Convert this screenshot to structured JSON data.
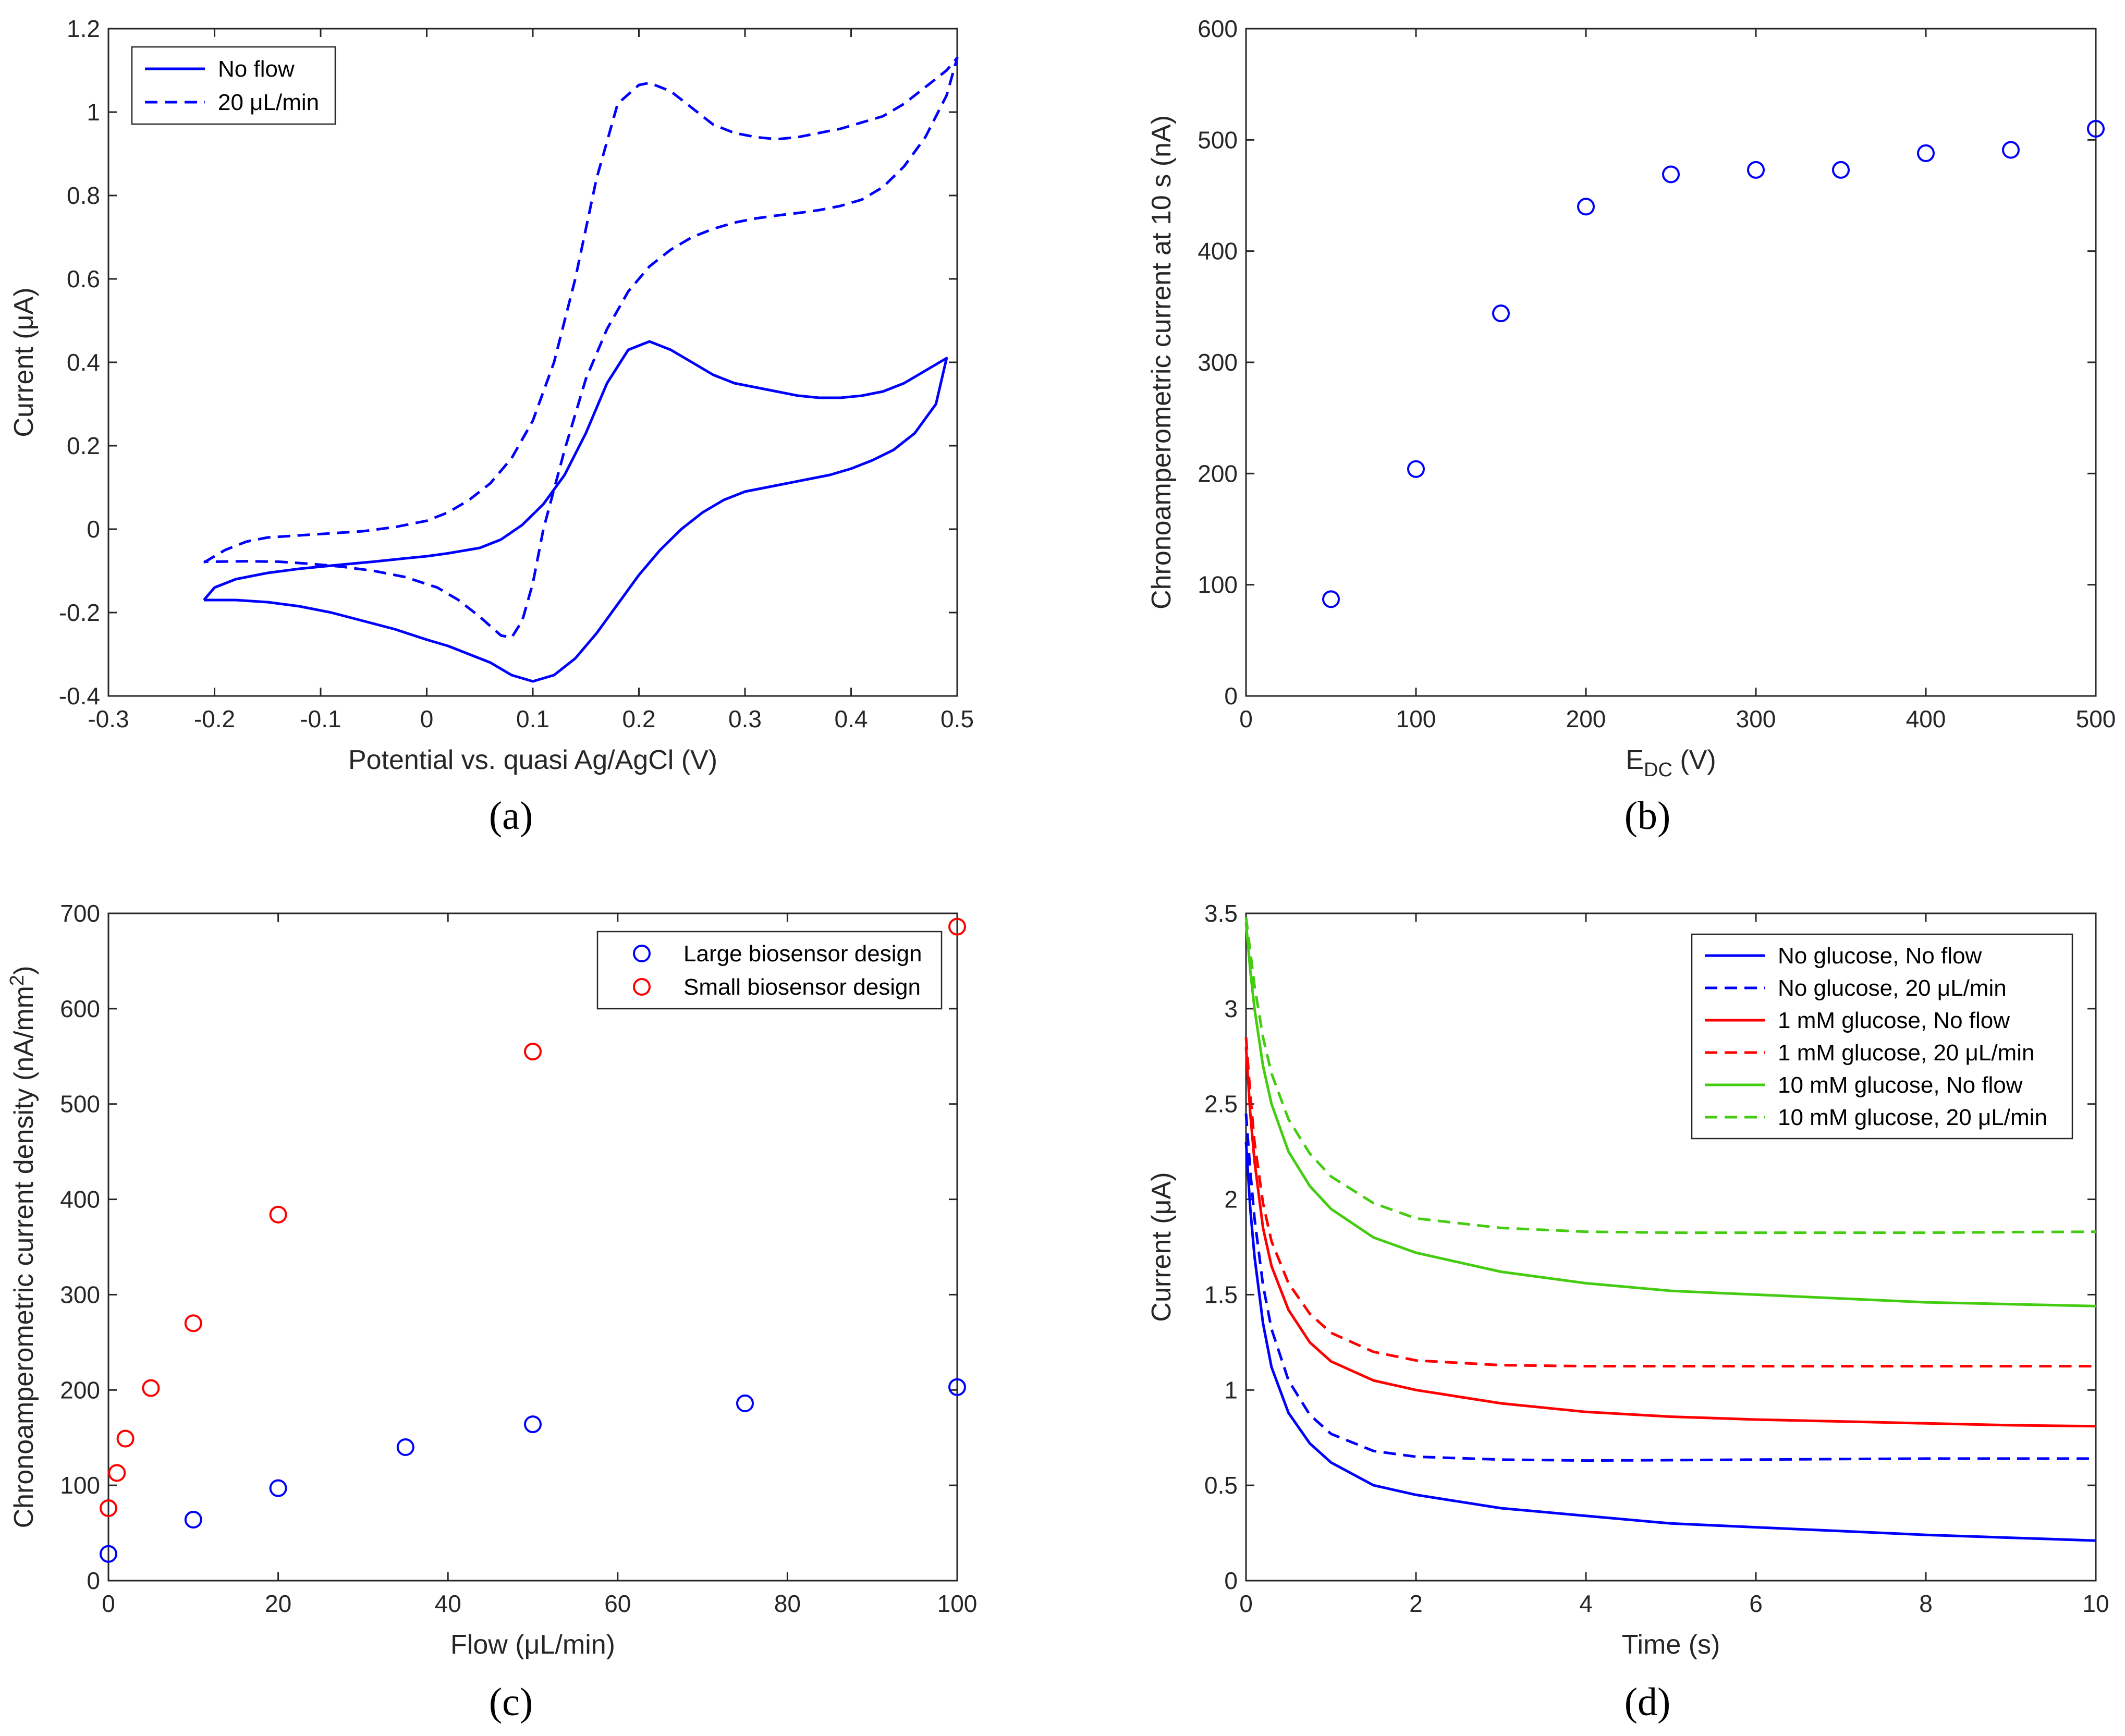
{
  "chart_data": [
    {
      "panel": "(a)",
      "type": "line",
      "xlabel": "Potential vs. quasi Ag/AgCl (V)",
      "ylabel": "Current (μA)",
      "xlim": [
        -0.3,
        0.5
      ],
      "ylim": [
        -0.4,
        1.2
      ],
      "xticks": [
        -0.3,
        -0.2,
        -0.1,
        0,
        0.1,
        0.2,
        0.3,
        0.4,
        0.5
      ],
      "xtick_labels": [
        "-0.3",
        "-0.2",
        "-0.1",
        "0",
        "0.1",
        "0.2",
        "0.3",
        "0.4",
        "0.5"
      ],
      "yticks": [
        -0.4,
        -0.2,
        0,
        0.2,
        0.4,
        0.6,
        0.8,
        1,
        1.2
      ],
      "ytick_labels": [
        "-0.4",
        "-0.2",
        "0",
        "0.2",
        "0.4",
        "0.6",
        "0.8",
        "1",
        "1.2"
      ],
      "legend_position": "top-left",
      "series": [
        {
          "name": "No flow",
          "color": "#0000ff",
          "dash": "solid",
          "x": [
            -0.21,
            -0.2,
            -0.18,
            -0.15,
            -0.12,
            -0.1,
            -0.08,
            -0.05,
            -0.02,
            0,
            0.02,
            0.05,
            0.07,
            0.09,
            0.11,
            0.13,
            0.15,
            0.17,
            0.19,
            0.21,
            0.23,
            0.25,
            0.27,
            0.29,
            0.31,
            0.33,
            0.35,
            0.37,
            0.39,
            0.41,
            0.43,
            0.45,
            0.47,
            0.49,
            0.48,
            0.46,
            0.44,
            0.42,
            0.4,
            0.38,
            0.36,
            0.34,
            0.32,
            0.3,
            0.28,
            0.26,
            0.24,
            0.22,
            0.2,
            0.18,
            0.16,
            0.14,
            0.12,
            0.1,
            0.08,
            0.06,
            0.04,
            0.02,
            0,
            -0.03,
            -0.06,
            -0.09,
            -0.12,
            -0.15,
            -0.18,
            -0.21
          ],
          "y": [
            -0.17,
            -0.14,
            -0.12,
            -0.105,
            -0.095,
            -0.09,
            -0.085,
            -0.078,
            -0.07,
            -0.065,
            -0.058,
            -0.045,
            -0.025,
            0.01,
            0.06,
            0.13,
            0.23,
            0.35,
            0.43,
            0.45,
            0.43,
            0.4,
            0.37,
            0.35,
            0.34,
            0.33,
            0.32,
            0.315,
            0.315,
            0.32,
            0.33,
            0.35,
            0.38,
            0.41,
            0.3,
            0.23,
            0.19,
            0.165,
            0.145,
            0.13,
            0.12,
            0.11,
            0.1,
            0.09,
            0.07,
            0.04,
            0,
            -0.05,
            -0.11,
            -0.18,
            -0.25,
            -0.31,
            -0.35,
            -0.365,
            -0.35,
            -0.32,
            -0.3,
            -0.28,
            -0.265,
            -0.24,
            -0.22,
            -0.2,
            -0.185,
            -0.175,
            -0.17,
            -0.17
          ]
        },
        {
          "name": "20 μL/min",
          "color": "#0000ff",
          "dash": "dashed",
          "x": [
            -0.21,
            -0.19,
            -0.17,
            -0.15,
            -0.12,
            -0.09,
            -0.06,
            -0.03,
            0,
            0.02,
            0.04,
            0.06,
            0.08,
            0.1,
            0.12,
            0.14,
            0.16,
            0.18,
            0.2,
            0.21,
            0.23,
            0.25,
            0.27,
            0.29,
            0.31,
            0.33,
            0.35,
            0.37,
            0.39,
            0.41,
            0.43,
            0.45,
            0.47,
            0.49,
            0.5,
            0.49,
            0.47,
            0.45,
            0.43,
            0.41,
            0.39,
            0.37,
            0.35,
            0.33,
            0.31,
            0.29,
            0.27,
            0.25,
            0.23,
            0.21,
            0.19,
            0.17,
            0.15,
            0.13,
            0.11,
            0.1,
            0.09,
            0.08,
            0.07,
            0.05,
            0.03,
            0.01,
            -0.02,
            -0.05,
            -0.08,
            -0.11,
            -0.14,
            -0.17,
            -0.2,
            -0.21
          ],
          "y": [
            -0.08,
            -0.05,
            -0.03,
            -0.02,
            -0.015,
            -0.01,
            -0.005,
            0.005,
            0.02,
            0.04,
            0.07,
            0.11,
            0.17,
            0.26,
            0.4,
            0.6,
            0.84,
            1.02,
            1.065,
            1.07,
            1.05,
            1.01,
            0.97,
            0.95,
            0.94,
            0.935,
            0.94,
            0.95,
            0.96,
            0.975,
            0.99,
            1.02,
            1.06,
            1.1,
            1.13,
            1.04,
            0.94,
            0.87,
            0.82,
            0.79,
            0.775,
            0.765,
            0.758,
            0.752,
            0.745,
            0.735,
            0.72,
            0.7,
            0.67,
            0.63,
            0.57,
            0.48,
            0.36,
            0.19,
            0.0,
            -0.13,
            -0.22,
            -0.26,
            -0.255,
            -0.21,
            -0.17,
            -0.14,
            -0.115,
            -0.1,
            -0.09,
            -0.083,
            -0.078,
            -0.077,
            -0.078,
            -0.078
          ]
        }
      ]
    },
    {
      "panel": "(b)",
      "type": "scatter",
      "xlabel_main": "E",
      "xlabel_sub": "DC",
      "xlabel_unit": " (V)",
      "ylabel": "Chronoamperometric current at 10 s (nA)",
      "xlim": [
        0,
        500
      ],
      "ylim": [
        0,
        600
      ],
      "xticks": [
        0,
        100,
        200,
        300,
        400,
        500
      ],
      "xtick_labels": [
        "0",
        "100",
        "200",
        "300",
        "400",
        "500"
      ],
      "yticks": [
        0,
        100,
        200,
        300,
        400,
        500,
        600
      ],
      "ytick_labels": [
        "0",
        "100",
        "200",
        "300",
        "400",
        "500",
        "600"
      ],
      "series": [
        {
          "color": "#0000ff",
          "x": [
            50,
            100,
            150,
            200,
            250,
            300,
            350,
            400,
            450,
            500
          ],
          "y": [
            87,
            204,
            344,
            440,
            469,
            473,
            473,
            488,
            491,
            510
          ]
        }
      ]
    },
    {
      "panel": "(c)",
      "type": "scatter",
      "xlabel": "Flow (μL/min)",
      "ylabel_main": "Chronoamperometric current density (nA/mm",
      "ylabel_sup": "2",
      "ylabel_end": ")",
      "xlim": [
        0,
        100
      ],
      "ylim": [
        0,
        700
      ],
      "xticks": [
        0,
        20,
        40,
        60,
        80,
        100
      ],
      "xtick_labels": [
        "0",
        "20",
        "40",
        "60",
        "80",
        "100"
      ],
      "yticks": [
        0,
        100,
        200,
        300,
        400,
        500,
        600,
        700
      ],
      "ytick_labels": [
        "0",
        "100",
        "200",
        "300",
        "400",
        "500",
        "600",
        "700"
      ],
      "legend_position": "top-right",
      "series": [
        {
          "name": "Large biosensor design",
          "color": "#0000ff",
          "x": [
            0,
            10,
            20,
            35,
            50,
            75,
            100
          ],
          "y": [
            28,
            64,
            97,
            140,
            164,
            186,
            203
          ]
        },
        {
          "name": "Small biosensor design",
          "color": "#ff0000",
          "x": [
            0,
            1,
            2,
            5,
            10,
            20,
            50,
            100
          ],
          "y": [
            76,
            113,
            149,
            202,
            270,
            384,
            555,
            686
          ]
        }
      ]
    },
    {
      "panel": "(d)",
      "type": "line",
      "xlabel": "Time (s)",
      "ylabel": "Current (μA)",
      "xlim": [
        0,
        10
      ],
      "ylim": [
        0,
        3.5
      ],
      "xticks": [
        0,
        2,
        4,
        6,
        8,
        10
      ],
      "xtick_labels": [
        "0",
        "2",
        "4",
        "6",
        "8",
        "10"
      ],
      "yticks": [
        0,
        0.5,
        1,
        1.5,
        2,
        2.5,
        3,
        3.5
      ],
      "ytick_labels": [
        "0",
        "0.5",
        "1",
        "1.5",
        "2",
        "2.5",
        "3",
        "3.5"
      ],
      "legend_position": "top-right",
      "series": [
        {
          "name": "No glucose, No flow",
          "color": "#0000ff",
          "dash": "solid",
          "x": [
            0,
            0.05,
            0.1,
            0.2,
            0.3,
            0.5,
            0.75,
            1,
            1.5,
            2,
            3,
            4,
            5,
            6,
            7,
            8,
            9,
            10
          ],
          "y": [
            2.3,
            1.95,
            1.7,
            1.35,
            1.12,
            0.88,
            0.72,
            0.62,
            0.5,
            0.45,
            0.38,
            0.34,
            0.3,
            0.28,
            0.26,
            0.24,
            0.225,
            0.21
          ]
        },
        {
          "name": "No glucose, 20 μL/min",
          "color": "#0000ff",
          "dash": "dashed",
          "x": [
            0,
            0.05,
            0.1,
            0.2,
            0.3,
            0.5,
            0.75,
            1,
            1.5,
            2,
            3,
            4,
            5,
            6,
            7,
            8,
            9,
            10
          ],
          "y": [
            2.45,
            2.15,
            1.9,
            1.55,
            1.32,
            1.05,
            0.87,
            0.77,
            0.68,
            0.65,
            0.635,
            0.63,
            0.632,
            0.635,
            0.638,
            0.64,
            0.64,
            0.64
          ]
        },
        {
          "name": "1 mM glucose, No flow",
          "color": "#ff0000",
          "dash": "solid",
          "x": [
            0,
            0.05,
            0.1,
            0.2,
            0.3,
            0.5,
            0.75,
            1,
            1.5,
            2,
            3,
            4,
            5,
            6,
            7,
            8,
            9,
            10
          ],
          "y": [
            2.8,
            2.45,
            2.2,
            1.85,
            1.65,
            1.42,
            1.25,
            1.15,
            1.05,
            1.0,
            0.93,
            0.885,
            0.86,
            0.845,
            0.835,
            0.825,
            0.815,
            0.81
          ]
        },
        {
          "name": "1 mM glucose, 20 μL/min",
          "color": "#ff0000",
          "dash": "dashed",
          "x": [
            0,
            0.05,
            0.1,
            0.2,
            0.3,
            0.5,
            0.75,
            1,
            1.5,
            2,
            3,
            4,
            5,
            6,
            7,
            8,
            9,
            10
          ],
          "y": [
            2.85,
            2.55,
            2.3,
            1.98,
            1.78,
            1.56,
            1.4,
            1.3,
            1.2,
            1.155,
            1.13,
            1.125,
            1.125,
            1.125,
            1.125,
            1.125,
            1.125,
            1.125
          ]
        },
        {
          "name": "10 mM glucose, No flow",
          "color": "#44cc11",
          "dash": "solid",
          "x": [
            0,
            0.05,
            0.1,
            0.2,
            0.3,
            0.5,
            0.75,
            1,
            1.5,
            2,
            3,
            4,
            5,
            6,
            7,
            8,
            9,
            10
          ],
          "y": [
            3.45,
            3.2,
            3.0,
            2.7,
            2.5,
            2.25,
            2.07,
            1.95,
            1.8,
            1.72,
            1.62,
            1.56,
            1.52,
            1.5,
            1.48,
            1.46,
            1.45,
            1.44
          ]
        },
        {
          "name": "10 mM glucose, 20 μL/min",
          "color": "#44cc11",
          "dash": "dashed",
          "x": [
            0,
            0.05,
            0.1,
            0.2,
            0.3,
            0.5,
            0.75,
            1,
            1.5,
            2,
            3,
            4,
            5,
            6,
            7,
            8,
            9,
            10
          ],
          "y": [
            3.48,
            3.3,
            3.12,
            2.85,
            2.66,
            2.42,
            2.24,
            2.12,
            1.98,
            1.9,
            1.85,
            1.83,
            1.825,
            1.825,
            1.825,
            1.825,
            1.828,
            1.83
          ]
        }
      ]
    }
  ]
}
